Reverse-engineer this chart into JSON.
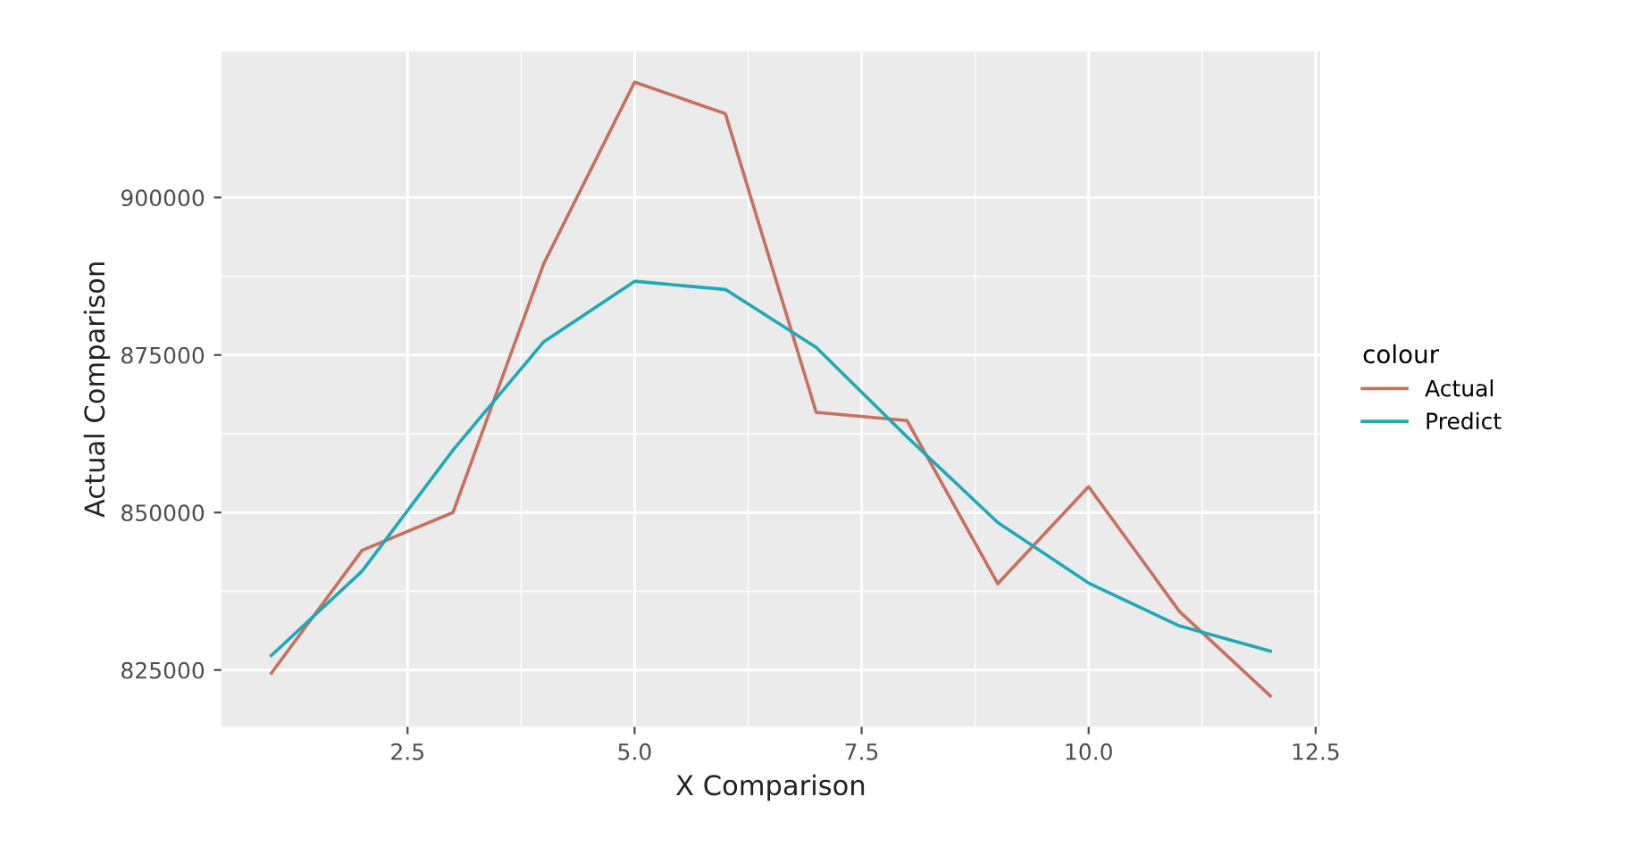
{
  "chart_data": {
    "type": "line",
    "xlabel": "X Comparison",
    "ylabel": "Actual Comparison",
    "legend_title": "colour",
    "x": [
      1,
      2,
      3,
      4,
      5,
      6,
      7,
      8,
      9,
      10,
      11,
      12
    ],
    "series": [
      {
        "name": "Actual",
        "color": "#c8705f",
        "values": [
          824500,
          844000,
          850000,
          889500,
          918300,
          913300,
          865900,
          864600,
          838700,
          854100,
          834300,
          820900
        ]
      },
      {
        "name": "Predict",
        "color": "#1fa8b8",
        "values": [
          827300,
          840700,
          859900,
          877100,
          886700,
          885400,
          876200,
          862000,
          848400,
          838800,
          832000,
          828000
        ]
      }
    ],
    "xlim": [
      0.45,
      12.55
    ],
    "ylim": [
      816000,
      923200
    ],
    "xticks": [
      {
        "value": 2.5,
        "label": "2.5"
      },
      {
        "value": 5,
        "label": "5.0"
      },
      {
        "value": 7.5,
        "label": "7.5"
      },
      {
        "value": 10,
        "label": "10.0"
      },
      {
        "value": 12.5,
        "label": "12.5"
      }
    ],
    "yticks": [
      825000,
      850000,
      875000,
      900000
    ],
    "grid": true,
    "legend": "right",
    "line_style": "solid",
    "marker": "none"
  }
}
